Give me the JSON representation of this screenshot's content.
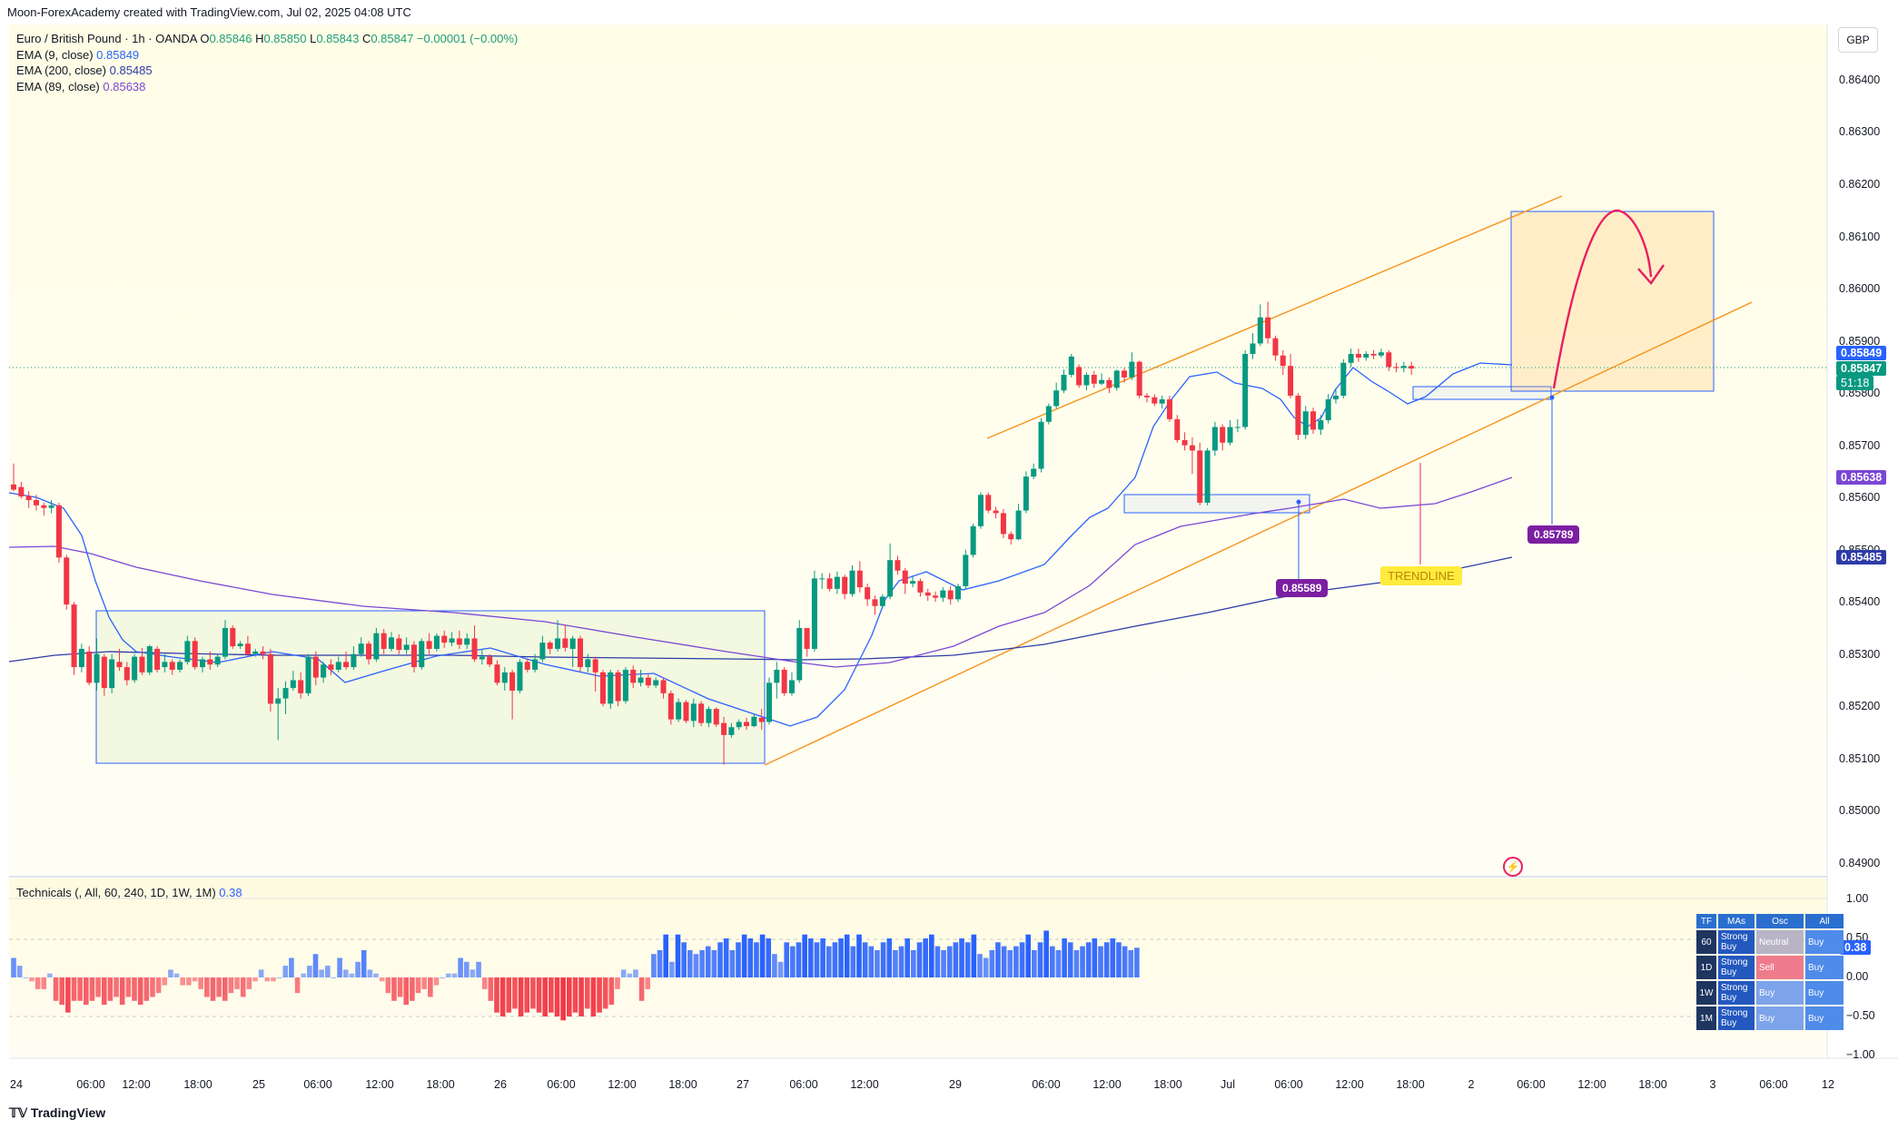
{
  "header": {
    "credit": "Moon-ForexAcademy created with TradingView.com, Jul 02, 2025 04:08 UTC",
    "symbol": "Euro / British Pound · 1h · OANDA",
    "o_label": "O",
    "o_val": "0.85846",
    "h_label": "H",
    "h_val": "0.85850",
    "l_label": "L",
    "l_val": "0.85843",
    "c_label": "C",
    "c_val": "0.85847",
    "change": "−0.00001 (−0.00%)"
  },
  "indicators": [
    {
      "label": "EMA (9, close)",
      "value": "0.85849",
      "color": "#2962ff"
    },
    {
      "label": "EMA (200, close)",
      "value": "0.85485",
      "color": "#2d3ba8"
    },
    {
      "label": "EMA (89, close)",
      "value": "0.85638",
      "color": "#7a47d6"
    }
  ],
  "currency": "GBP",
  "price_axis": [
    "0.86400",
    "0.86300",
    "0.86200",
    "0.86100",
    "0.86000",
    "0.85900",
    "0.85800",
    "0.85700",
    "0.85600",
    "0.85500",
    "0.85400",
    "0.85300",
    "0.85200",
    "0.85100",
    "0.85000",
    "0.84900"
  ],
  "price_tags": {
    "ema9": "0.85849",
    "last": "0.85847",
    "countdown": "51:18",
    "ema89": "0.85638",
    "ema200": "0.85485"
  },
  "annotations": {
    "trendline": "TRENDLINE",
    "low_label": "0.85589",
    "target_label": "0.85789"
  },
  "time_axis": [
    "24",
    "06:00",
    "12:00",
    "18:00",
    "25",
    "06:00",
    "12:00",
    "18:00",
    "26",
    "06:00",
    "12:00",
    "18:00",
    "27",
    "06:00",
    "12:00",
    "29",
    "06:00",
    "12:00",
    "18:00",
    "Jul",
    "06:00",
    "12:00",
    "18:00",
    "2",
    "06:00",
    "12:00",
    "18:00",
    "3",
    "06:00",
    "12"
  ],
  "technicals": {
    "label": "Technicals (, All, 60, 240, 1D, 1W, 1M)",
    "value": "0.38",
    "axis": [
      "1.00",
      "0.50",
      "0.00",
      "−0.50",
      "−1.00"
    ],
    "tag": "0.38",
    "table": {
      "headers": [
        "TF",
        "MAs",
        "Osc",
        "All"
      ],
      "rows": [
        {
          "tf": "60",
          "mas": "Strong Buy",
          "osc": "Neutral",
          "all": "Buy"
        },
        {
          "tf": "1D",
          "mas": "Strong Buy",
          "osc": "Sell",
          "all": "Buy"
        },
        {
          "tf": "1W",
          "mas": "Strong Buy",
          "osc": "Buy",
          "all": "Buy"
        },
        {
          "tf": "1M",
          "mas": "Strong Buy",
          "osc": "Buy",
          "all": "Buy"
        }
      ]
    }
  },
  "footer": {
    "brand": "TradingView"
  },
  "colors": {
    "up": "#089981",
    "down": "#f23645",
    "ema9": "#2962ff",
    "ema200": "#2d3ba8",
    "ema89": "#7a47d6",
    "channel": "#f7931a",
    "box": "#2962ff",
    "pink": "#e91e63",
    "yellow": "#ffeb3b"
  }
}
